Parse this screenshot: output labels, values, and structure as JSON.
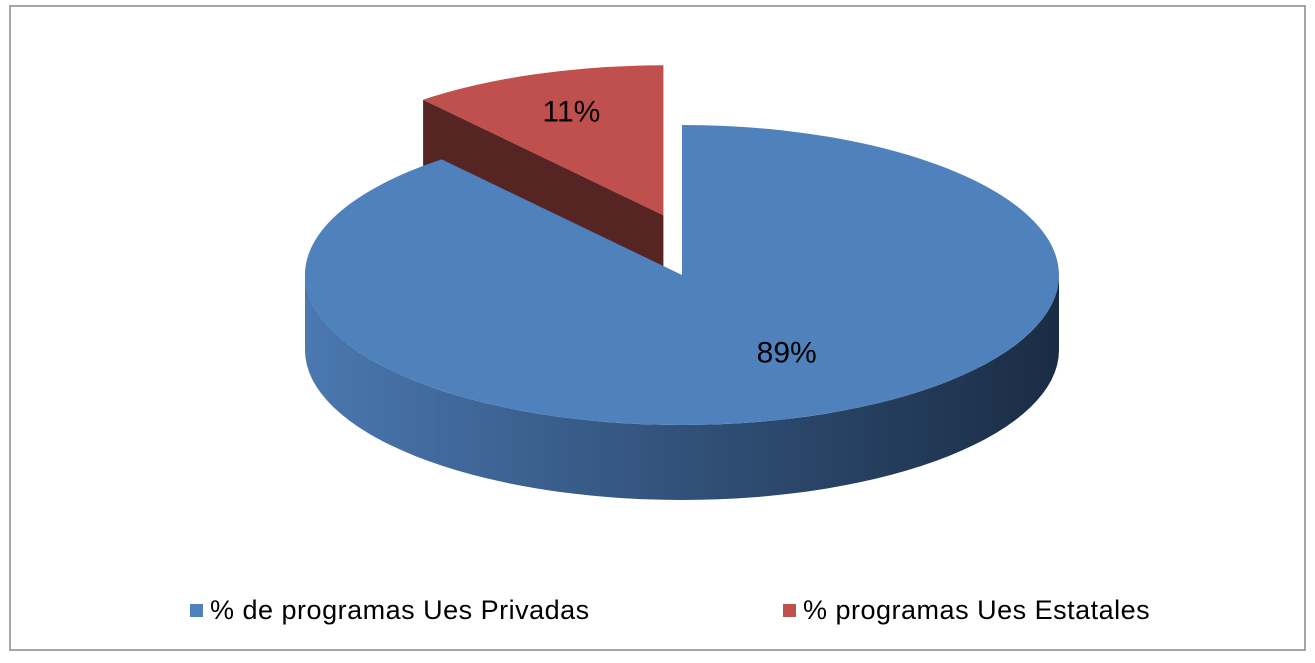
{
  "chart_data": {
    "type": "pie3d",
    "categories": [
      "% de programas Ues Privadas",
      "% programas Ues Estatales"
    ],
    "values": [
      89,
      11
    ],
    "value_labels": [
      "89%",
      "11%"
    ],
    "colors": [
      "#4f81bd",
      "#c0504d"
    ],
    "exploded": [
      false,
      true
    ],
    "legend": "bottom"
  }
}
